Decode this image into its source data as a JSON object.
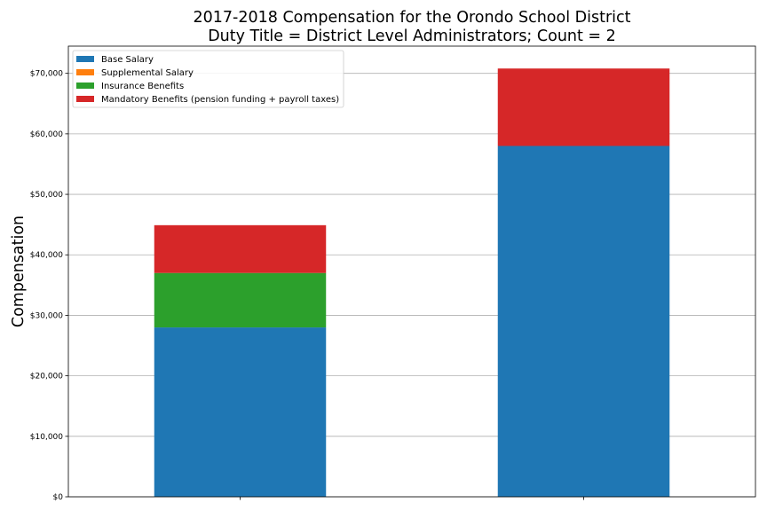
{
  "chart_data": {
    "type": "bar",
    "stacked": true,
    "title": [
      "2017-2018 Compensation for the Orondo School District",
      "Duty Title = District Level Administrators; Count = 2"
    ],
    "ylabel": "Compensation",
    "xlabel": "",
    "categories": [
      "",
      ""
    ],
    "ylim": [
      0,
      74500
    ],
    "yticks": [
      0,
      10000,
      20000,
      30000,
      40000,
      50000,
      60000,
      70000
    ],
    "ytick_labels": [
      "$0",
      "$10,000",
      "$20,000",
      "$30,000",
      "$40,000",
      "$50,000",
      "$60,000",
      "$70,000"
    ],
    "grid": "horizontal",
    "legend_placement": "top-left",
    "series": [
      {
        "name": "Base Salary",
        "color": "#1f77b4",
        "values": [
          28000,
          58000
        ]
      },
      {
        "name": "Supplemental Salary",
        "color": "#ff7f0e",
        "values": [
          0,
          0
        ]
      },
      {
        "name": "Insurance Benefits",
        "color": "#2ca02c",
        "values": [
          9000,
          0
        ]
      },
      {
        "name": "Mandatory Benefits (pension funding + payroll taxes)",
        "color": "#d62728",
        "values": [
          7900,
          12800
        ]
      }
    ]
  }
}
